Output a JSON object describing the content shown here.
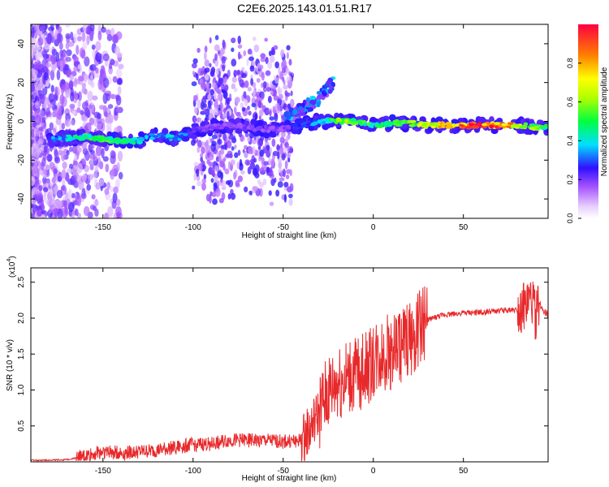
{
  "title": "C2E6.2025.143.01.51.R17",
  "chart_data": [
    {
      "type": "heatmap",
      "xlabel": "Height of straight line (km)",
      "ylabel": "Frequency (Hz)",
      "xlim": [
        -190,
        97
      ],
      "ylim": [
        -50,
        50
      ],
      "xticks": [
        -150,
        -100,
        -50,
        0,
        50
      ],
      "yticks": [
        -40,
        -20,
        0,
        20,
        40
      ],
      "colorbar": {
        "label": "Normalized spectral amplitude",
        "range": [
          0,
          1
        ],
        "ticks": [
          "0.0",
          "0.2",
          "0.4",
          "0.6",
          "0.8"
        ]
      },
      "main_track": [
        {
          "x": -175,
          "freq": -9,
          "amp": 0.35
        },
        {
          "x": -160,
          "freq": -8,
          "amp": 0.5
        },
        {
          "x": -150,
          "freq": -9,
          "amp": 0.55
        },
        {
          "x": -140,
          "freq": -10,
          "amp": 0.5
        },
        {
          "x": -130,
          "freq": -10,
          "amp": 0.45
        },
        {
          "x": -120,
          "freq": -7,
          "amp": 0.35
        },
        {
          "x": -110,
          "freq": -9,
          "amp": 0.4
        },
        {
          "x": -100,
          "freq": -5,
          "amp": 0.25
        },
        {
          "x": -90,
          "freq": -3,
          "amp": 0.2
        },
        {
          "x": -80,
          "freq": -2,
          "amp": 0.2
        },
        {
          "x": -70,
          "freq": -3,
          "amp": 0.2
        },
        {
          "x": -60,
          "freq": -4,
          "amp": 0.2
        },
        {
          "x": -50,
          "freq": -4,
          "amp": 0.2
        },
        {
          "x": -40,
          "freq": -2,
          "amp": 0.3
        },
        {
          "x": -30,
          "freq": 0,
          "amp": 0.35
        },
        {
          "x": -20,
          "freq": 0,
          "amp": 0.6
        },
        {
          "x": -10,
          "freq": 0,
          "amp": 0.55
        },
        {
          "x": 0,
          "freq": -2,
          "amp": 0.5
        },
        {
          "x": 10,
          "freq": -1,
          "amp": 0.55
        },
        {
          "x": 20,
          "freq": -1,
          "amp": 0.6
        },
        {
          "x": 30,
          "freq": -2,
          "amp": 0.7
        },
        {
          "x": 40,
          "freq": -2,
          "amp": 0.8
        },
        {
          "x": 50,
          "freq": -2,
          "amp": 0.9
        },
        {
          "x": 60,
          "freq": -2,
          "amp": 0.95
        },
        {
          "x": 70,
          "freq": -2,
          "amp": 0.9
        },
        {
          "x": 80,
          "freq": -2,
          "amp": 0.75
        },
        {
          "x": 90,
          "freq": -3,
          "amp": 0.6
        },
        {
          "x": 97,
          "freq": -3,
          "amp": 0.5
        }
      ],
      "rising_branch": [
        {
          "x": -50,
          "freq": 0
        },
        {
          "x": -40,
          "freq": 6
        },
        {
          "x": -30,
          "freq": 12
        },
        {
          "x": -22,
          "freq": 20
        }
      ]
    },
    {
      "type": "line",
      "xlabel": "Height of straight line (km)",
      "ylabel": "SNR (10 * v/v)",
      "y_multiplier": "(x10",
      "y_multiplier_exp": "4",
      "y_multiplier_close": ")",
      "xlim": [
        -190,
        97
      ],
      "ylim": [
        0,
        2.7
      ],
      "xticks": [
        -150,
        -100,
        -50,
        0,
        50
      ],
      "yticks": [
        "0.5",
        "1.0",
        "1.5",
        "2.0",
        "2.5"
      ],
      "color": "#e8292b",
      "series": [
        {
          "x": [
            -190,
            -170,
            -160,
            -150,
            -140,
            -130,
            -120,
            -110,
            -100,
            -90,
            -80,
            -70,
            -60,
            -50,
            -40,
            -35,
            -30,
            -25,
            -20,
            -15,
            -10,
            -5,
            0,
            5,
            10,
            15,
            20,
            25,
            30,
            40,
            50,
            60,
            70,
            80,
            85,
            88,
            90,
            92,
            95,
            97
          ],
          "y": [
            0.02,
            0.03,
            0.08,
            0.15,
            0.12,
            0.14,
            0.16,
            0.2,
            0.24,
            0.25,
            0.3,
            0.3,
            0.3,
            0.28,
            0.3,
            0.45,
            0.7,
            0.95,
            1.1,
            1.15,
            1.2,
            1.3,
            1.4,
            1.5,
            1.55,
            1.6,
            1.7,
            1.85,
            1.98,
            2.05,
            2.07,
            2.08,
            2.1,
            2.12,
            2.15,
            2.3,
            2.0,
            2.2,
            2.1,
            2.05
          ]
        }
      ]
    }
  ]
}
